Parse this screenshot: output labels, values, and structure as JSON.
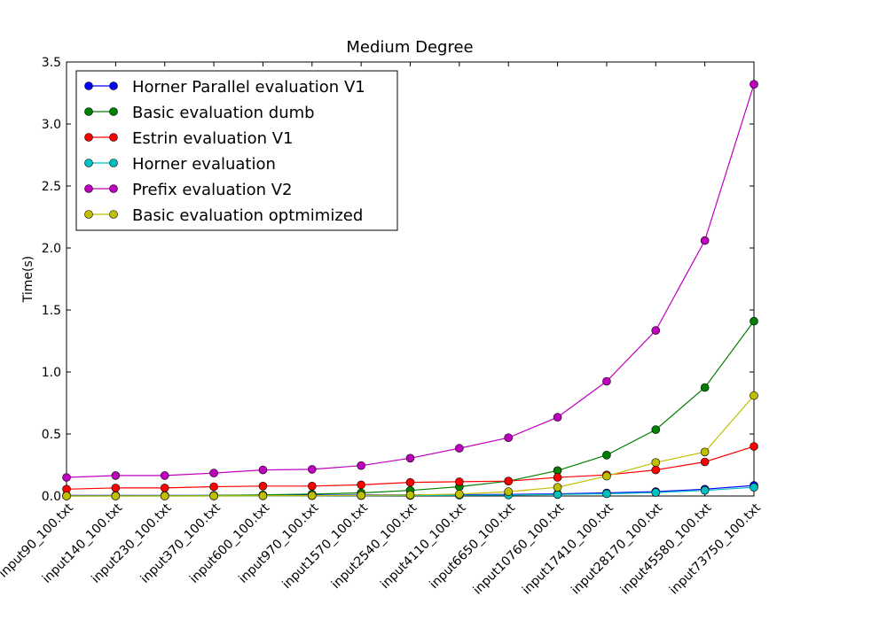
{
  "chart_data": {
    "type": "line",
    "title": "Medium Degree",
    "xlabel": "",
    "ylabel": "Time(s)",
    "ylim": [
      0,
      3.5
    ],
    "yticks": [
      "0.0",
      "0.5",
      "1.0",
      "1.5",
      "2.0",
      "2.5",
      "3.0",
      "3.5"
    ],
    "grid": false,
    "legend_position": "top-left",
    "categories": [
      "input90_100.txt",
      "input140_100.txt",
      "input230_100.txt",
      "input370_100.txt",
      "input600_100.txt",
      "input970_100.txt",
      "input1570_100.txt",
      "input2540_100.txt",
      "input4110_100.txt",
      "input6650_100.txt",
      "input10760_100.txt",
      "input17410_100.txt",
      "input28170_100.txt",
      "input45580_100.txt",
      "input73750_100.txt"
    ],
    "series": [
      {
        "name": "Horner Parallel evaluation V1",
        "color": "#0000ff",
        "values": [
          0.005,
          0.005,
          0.005,
          0.005,
          0.006,
          0.007,
          0.008,
          0.009,
          0.01,
          0.013,
          0.017,
          0.025,
          0.035,
          0.055,
          0.085
        ]
      },
      {
        "name": "Basic evaluation dumb",
        "color": "#008000",
        "values": [
          0.0,
          0.001,
          0.002,
          0.004,
          0.009,
          0.015,
          0.025,
          0.045,
          0.075,
          0.12,
          0.205,
          0.33,
          0.535,
          0.875,
          1.41
        ]
      },
      {
        "name": "Estrin evaluation V1",
        "color": "#ff0000",
        "values": [
          0.055,
          0.065,
          0.065,
          0.075,
          0.08,
          0.08,
          0.09,
          0.11,
          0.115,
          0.12,
          0.15,
          0.17,
          0.21,
          0.275,
          0.4
        ]
      },
      {
        "name": "Horner evaluation",
        "color": "#00bfbf",
        "values": [
          0.0,
          0.0,
          0.0,
          0.0,
          0.001,
          0.002,
          0.003,
          0.004,
          0.006,
          0.008,
          0.012,
          0.018,
          0.028,
          0.045,
          0.07
        ]
      },
      {
        "name": "Prefix evaluation V2",
        "color": "#bf00bf",
        "values": [
          0.15,
          0.165,
          0.165,
          0.185,
          0.21,
          0.215,
          0.245,
          0.305,
          0.385,
          0.47,
          0.635,
          0.925,
          1.335,
          2.06,
          3.32
        ]
      },
      {
        "name": "Basic evaluation optmimized",
        "color": "#bfbf00",
        "values": [
          0.0,
          0.0,
          0.0,
          0.001,
          0.002,
          0.003,
          0.005,
          0.008,
          0.015,
          0.035,
          0.07,
          0.16,
          0.27,
          0.355,
          0.81
        ]
      }
    ]
  }
}
